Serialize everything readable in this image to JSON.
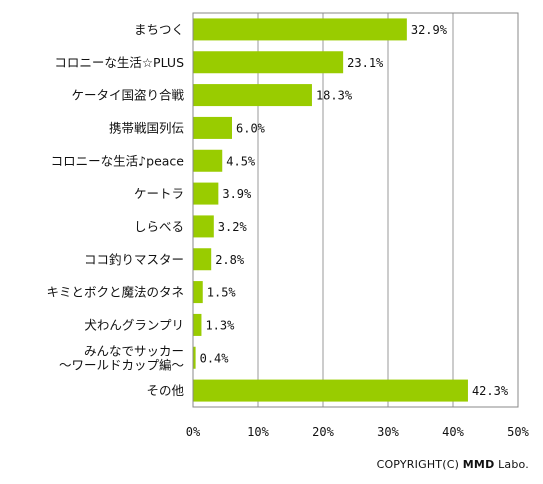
{
  "chart_data": {
    "type": "bar",
    "orientation": "horizontal",
    "categories": [
      "まちつく",
      "コロニーな生活☆PLUS",
      "ケータイ国盗り合戦",
      "携帯戦国列伝",
      "コロニーな生活♪peace",
      "ケートラ",
      "しらべる",
      "ココ釣りマスター",
      "キミとボクと魔法のタネ",
      "犬わんグランプリ",
      "みんなでサッカー\n～ワールドカップ編～",
      "その他"
    ],
    "values": [
      32.9,
      23.1,
      18.3,
      6.0,
      4.5,
      3.9,
      3.2,
      2.8,
      1.5,
      1.3,
      0.4,
      42.3
    ],
    "value_labels": [
      "32.9%",
      "23.1%",
      "18.3%",
      "6.0%",
      "4.5%",
      "3.9%",
      "3.2%",
      "2.8%",
      "1.5%",
      "1.3%",
      "0.4%",
      "42.3%"
    ],
    "xlim": [
      0,
      50
    ],
    "xticks": [
      0,
      10,
      20,
      30,
      40,
      50
    ],
    "xtick_labels": [
      "0%",
      "10%",
      "20%",
      "30%",
      "40%",
      "50%"
    ],
    "grid": "vertical",
    "bar_color": "#99cc00"
  },
  "footer": {
    "copyright_prefix": "COPYRIGHT(C) ",
    "copyright_brand": "MMD",
    "copyright_suffix": " Labo."
  }
}
